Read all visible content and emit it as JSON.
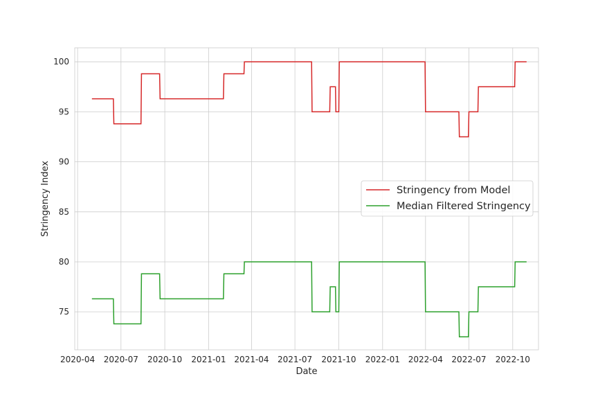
{
  "chart_data": {
    "type": "line",
    "title": "",
    "xlabel": "Date",
    "ylabel": "Stringency Index",
    "grid": true,
    "legend_position": "center-right",
    "xlim": [
      "2020-03-26",
      "2022-11-24"
    ],
    "ylim": [
      71.2,
      101.4
    ],
    "xticks": [
      {
        "date": "2020-04-01",
        "label": "2020-04"
      },
      {
        "date": "2020-07-01",
        "label": "2020-07"
      },
      {
        "date": "2020-10-01",
        "label": "2020-10"
      },
      {
        "date": "2021-01-01",
        "label": "2021-01"
      },
      {
        "date": "2021-04-01",
        "label": "2021-04"
      },
      {
        "date": "2021-07-01",
        "label": "2021-07"
      },
      {
        "date": "2021-10-01",
        "label": "2021-10"
      },
      {
        "date": "2022-01-01",
        "label": "2022-01"
      },
      {
        "date": "2022-04-01",
        "label": "2022-04"
      },
      {
        "date": "2022-07-01",
        "label": "2022-07"
      },
      {
        "date": "2022-10-01",
        "label": "2022-10"
      }
    ],
    "yticks": [
      75,
      80,
      85,
      90,
      95,
      100
    ],
    "series": [
      {
        "name": "Stringency from Model",
        "color": "#d62728",
        "x": [
          "2020-05-01",
          "2020-06-15",
          "2020-06-16",
          "2020-08-12",
          "2020-08-13",
          "2020-09-20",
          "2020-09-21",
          "2021-02-01",
          "2021-02-02",
          "2021-03-16",
          "2021-03-17",
          "2021-08-05",
          "2021-08-06",
          "2021-09-12",
          "2021-09-13",
          "2021-09-24",
          "2021-09-25",
          "2021-10-01",
          "2021-10-02",
          "2022-03-31",
          "2022-04-01",
          "2022-06-10",
          "2022-06-11",
          "2022-06-30",
          "2022-07-01",
          "2022-07-20",
          "2022-07-21",
          "2022-10-05",
          "2022-10-06",
          "2022-10-30"
        ],
        "y": [
          96.3,
          96.3,
          93.8,
          93.8,
          98.8,
          98.8,
          96.3,
          96.3,
          98.8,
          98.8,
          100,
          100,
          95,
          95,
          97.5,
          97.5,
          95,
          95,
          100,
          100,
          95,
          95,
          92.5,
          92.5,
          95,
          95,
          97.5,
          97.5,
          100,
          100
        ]
      },
      {
        "name": "Median Filtered Stringency",
        "color": "#2ca02c",
        "x": [
          "2020-05-01",
          "2020-06-15",
          "2020-06-16",
          "2020-08-12",
          "2020-08-13",
          "2020-09-20",
          "2020-09-21",
          "2021-02-01",
          "2021-02-02",
          "2021-03-16",
          "2021-03-17",
          "2021-08-05",
          "2021-08-06",
          "2021-09-12",
          "2021-09-13",
          "2021-09-24",
          "2021-09-25",
          "2021-10-01",
          "2021-10-02",
          "2022-03-31",
          "2022-04-01",
          "2022-06-10",
          "2022-06-11",
          "2022-06-30",
          "2022-07-01",
          "2022-07-20",
          "2022-07-21",
          "2022-10-05",
          "2022-10-06",
          "2022-10-30"
        ],
        "y": [
          76.3,
          76.3,
          73.8,
          73.8,
          78.8,
          78.8,
          76.3,
          76.3,
          78.8,
          78.8,
          80,
          80,
          75,
          75,
          77.5,
          77.5,
          75,
          75,
          80,
          80,
          75,
          75,
          72.5,
          72.5,
          75,
          75,
          77.5,
          77.5,
          80,
          80
        ]
      }
    ]
  }
}
